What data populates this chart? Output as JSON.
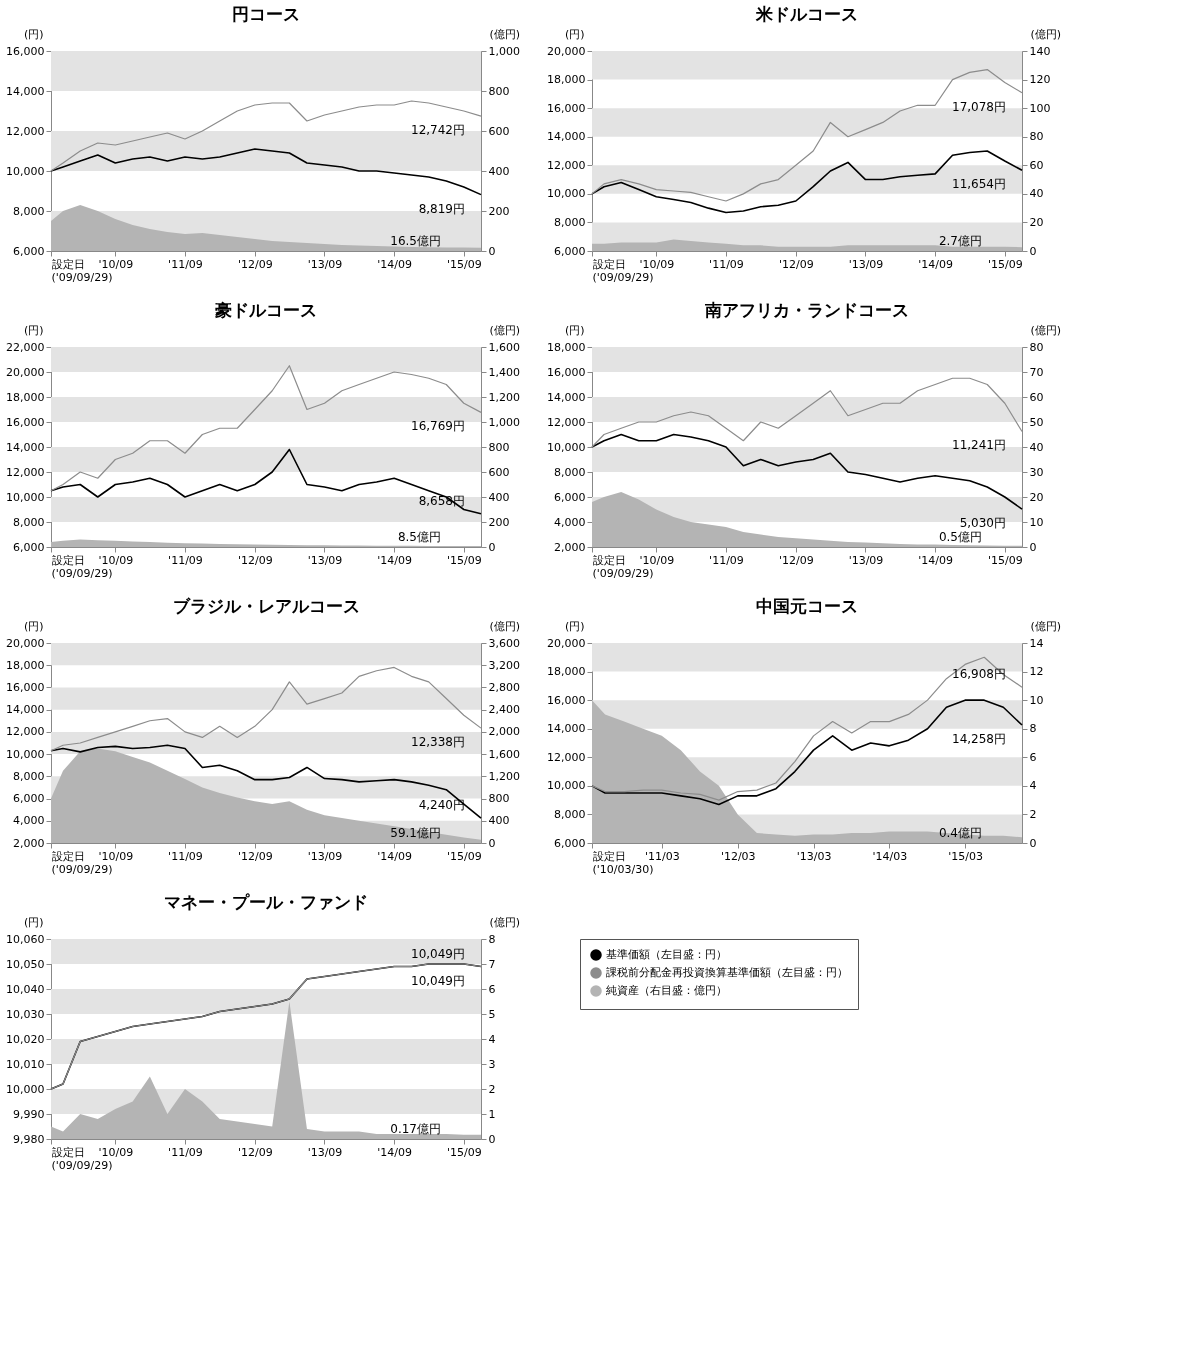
{
  "chart_data": [
    {
      "type": "line",
      "title": "円コース",
      "ylabel": "(円)",
      "y2label": "(億円)",
      "x": [
        "2009-09-29",
        "2009-12",
        "2010-03",
        "2010-06",
        "2010-09",
        "2010-12",
        "2011-03",
        "2011-06",
        "2011-09",
        "2011-12",
        "2012-03",
        "2012-06",
        "2012-09",
        "2012-12",
        "2013-03",
        "2013-06",
        "2013-09",
        "2013-12",
        "2014-03",
        "2014-06",
        "2014-09",
        "2014-12",
        "2015-03",
        "2015-06",
        "2015-09",
        "2015-11-30"
      ],
      "xlim": [
        "2009-09-29",
        "2015-11-30"
      ],
      "xticks": [
        {
          "value": "2009-09-29",
          "label": "設定日\n('09/09/29)"
        },
        {
          "value": "2010-09",
          "label": "'10/09"
        },
        {
          "value": "2011-09",
          "label": "'11/09"
        },
        {
          "value": "2012-09",
          "label": "'12/09"
        },
        {
          "value": "2013-09",
          "label": "'13/09"
        },
        {
          "value": "2014-09",
          "label": "'14/09"
        },
        {
          "value": "2015-09",
          "label": "'15/09"
        }
      ],
      "ylim": [
        6000,
        16000
      ],
      "yticks": [
        {
          "value": 6000,
          "label": "6,000"
        },
        {
          "value": 8000,
          "label": "8,000"
        },
        {
          "value": 10000,
          "label": "10,000"
        },
        {
          "value": 12000,
          "label": "12,000"
        },
        {
          "value": 14000,
          "label": "14,000"
        },
        {
          "value": 16000,
          "label": "16,000"
        }
      ],
      "y2lim": [
        0,
        1000
      ],
      "y2ticks": [
        0,
        200,
        400,
        600,
        800,
        {
          "value": 1000,
          "label": "1,000"
        }
      ],
      "bands": [
        {
          "axis": "y",
          "from": 14000,
          "to": 16000,
          "color": "#e3e3e3"
        },
        {
          "axis": "y",
          "from": 10000,
          "to": 12000,
          "color": "#e3e3e3"
        },
        {
          "axis": "y",
          "from": 6000,
          "to": 8000,
          "color": "#e3e3e3"
        }
      ],
      "series": [
        {
          "color": "#000000",
          "values": [
            10000,
            10200,
            10500,
            10800,
            10400,
            10600,
            10700,
            10500,
            10700,
            10600,
            10700,
            10900,
            11100,
            11000,
            10900,
            10400,
            10300,
            10200,
            10000,
            10000,
            9900,
            9800,
            9700,
            9500,
            9200,
            8819
          ]
        },
        {
          "color": "#8c8c8c",
          "values": [
            10000,
            10400,
            11000,
            11400,
            11300,
            11500,
            11700,
            11900,
            11600,
            12000,
            12500,
            13000,
            13300,
            13400,
            13400,
            12500,
            12800,
            13000,
            13200,
            13300,
            13300,
            13500,
            13400,
            13200,
            13000,
            12742
          ]
        },
        {
          "type": "area",
          "axis": "y2",
          "color": "#b4b4b4",
          "values": [
            150,
            200,
            230,
            200,
            160,
            130,
            110,
            95,
            85,
            90,
            80,
            70,
            60,
            50,
            45,
            40,
            35,
            30,
            28,
            25,
            22,
            20,
            19,
            18,
            17,
            16.5
          ]
        }
      ],
      "annotations": [
        {
          "text": "12,742円",
          "x": "2015-11-30",
          "y": 12742
        },
        {
          "text": "8,819円",
          "x": "2015-11-30",
          "y": 8819
        },
        "16.5億円"
      ]
    },
    {
      "type": "line",
      "title": "米ドルコース",
      "ylabel": "(円)",
      "y2label": "(億円)",
      "x": [
        "2009-09-29",
        "2009-12",
        "2010-03",
        "2010-06",
        "2010-09",
        "2010-12",
        "2011-03",
        "2011-06",
        "2011-09",
        "2011-12",
        "2012-03",
        "2012-06",
        "2012-09",
        "2012-12",
        "2013-03",
        "2013-06",
        "2013-09",
        "2013-12",
        "2014-03",
        "2014-06",
        "2014-09",
        "2014-12",
        "2015-03",
        "2015-06",
        "2015-09",
        "2015-11-30"
      ],
      "xlim": [
        "2009-09-29",
        "2015-11-30"
      ],
      "xticks": [
        {
          "value": "2009-09-29",
          "label": "設定日\n('09/09/29)"
        },
        {
          "value": "2010-09",
          "label": "'10/09"
        },
        {
          "value": "2011-09",
          "label": "'11/09"
        },
        {
          "value": "2012-09",
          "label": "'12/09"
        },
        {
          "value": "2013-09",
          "label": "'13/09"
        },
        {
          "value": "2014-09",
          "label": "'14/09"
        },
        {
          "value": "2015-09",
          "label": "'15/09"
        }
      ],
      "ylim": [
        6000,
        20000
      ],
      "yticks": [
        {
          "value": 6000,
          "label": "6,000"
        },
        {
          "value": 8000,
          "label": "8,000"
        },
        {
          "value": 10000,
          "label": "10,000"
        },
        {
          "value": 12000,
          "label": "12,000"
        },
        {
          "value": 14000,
          "label": "14,000"
        },
        {
          "value": 16000,
          "label": "16,000"
        },
        {
          "value": 18000,
          "label": "18,000"
        },
        {
          "value": 20000,
          "label": "20,000"
        }
      ],
      "y2lim": [
        0,
        140
      ],
      "y2ticks": [
        0,
        20,
        40,
        60,
        80,
        100,
        120,
        140
      ],
      "bands": [
        {
          "axis": "y",
          "from": 18000,
          "to": 20000,
          "color": "#e3e3e3"
        },
        {
          "axis": "y",
          "from": 14000,
          "to": 16000,
          "color": "#e3e3e3"
        },
        {
          "axis": "y",
          "from": 10000,
          "to": 12000,
          "color": "#e3e3e3"
        },
        {
          "axis": "y",
          "from": 6000,
          "to": 8000,
          "color": "#e3e3e3"
        }
      ],
      "series": [
        {
          "color": "#000000",
          "values": [
            10000,
            10500,
            10800,
            10300,
            9800,
            9600,
            9400,
            9000,
            8700,
            8800,
            9100,
            9200,
            9500,
            10500,
            11600,
            12200,
            11000,
            11000,
            11200,
            11300,
            11400,
            12700,
            12900,
            13000,
            12300,
            11654
          ]
        },
        {
          "color": "#8c8c8c",
          "values": [
            10000,
            10700,
            11000,
            10700,
            10300,
            10200,
            10100,
            9800,
            9500,
            10000,
            10700,
            11000,
            12000,
            13000,
            15000,
            14000,
            14500,
            15000,
            15800,
            16200,
            16200,
            18000,
            18500,
            18700,
            17800,
            17078
          ]
        },
        {
          "type": "area",
          "axis": "y2",
          "color": "#b4b4b4",
          "values": [
            5,
            5,
            6,
            6,
            6,
            8,
            7,
            6,
            5,
            4,
            4,
            3,
            3,
            3,
            3,
            4,
            4,
            4,
            4,
            4,
            4,
            3,
            3,
            3,
            3,
            2.7
          ]
        }
      ],
      "annotations": [
        {
          "text": "17,078円",
          "x": "2015-11-30",
          "y": 17078
        },
        {
          "text": "11,654円",
          "x": "2015-11-30",
          "y": 11654
        },
        "2.7億円"
      ]
    },
    {
      "type": "line",
      "title": "豪ドルコース",
      "ylabel": "(円)",
      "y2label": "(億円)",
      "x": [
        "2009-09-29",
        "2009-12",
        "2010-03",
        "2010-06",
        "2010-09",
        "2010-12",
        "2011-03",
        "2011-06",
        "2011-09",
        "2011-12",
        "2012-03",
        "2012-06",
        "2012-09",
        "2012-12",
        "2013-03",
        "2013-06",
        "2013-09",
        "2013-12",
        "2014-03",
        "2014-06",
        "2014-09",
        "2014-12",
        "2015-03",
        "2015-06",
        "2015-09",
        "2015-11-30"
      ],
      "xlim": [
        "2009-09-29",
        "2015-11-30"
      ],
      "xticks": [
        {
          "value": "2009-09-29",
          "label": "設定日\n('09/09/29)"
        },
        {
          "value": "2010-09",
          "label": "'10/09"
        },
        {
          "value": "2011-09",
          "label": "'11/09"
        },
        {
          "value": "2012-09",
          "label": "'12/09"
        },
        {
          "value": "2013-09",
          "label": "'13/09"
        },
        {
          "value": "2014-09",
          "label": "'14/09"
        },
        {
          "value": "2015-09",
          "label": "'15/09"
        }
      ],
      "ylim": [
        6000,
        22000
      ],
      "yticks": [
        {
          "value": 6000,
          "label": "6,000"
        },
        {
          "value": 8000,
          "label": "8,000"
        },
        {
          "value": 10000,
          "label": "10,000"
        },
        {
          "value": 12000,
          "label": "12,000"
        },
        {
          "value": 14000,
          "label": "14,000"
        },
        {
          "value": 16000,
          "label": "16,000"
        },
        {
          "value": 18000,
          "label": "18,000"
        },
        {
          "value": 20000,
          "label": "20,000"
        },
        {
          "value": 22000,
          "label": "22,000"
        }
      ],
      "y2lim": [
        0,
        1600
      ],
      "y2ticks": [
        0,
        200,
        400,
        600,
        800,
        {
          "value": 1000,
          "label": "1,000"
        },
        {
          "value": 1200,
          "label": "1,200"
        },
        {
          "value": 1400,
          "label": "1,400"
        },
        {
          "value": 1600,
          "label": "1,600"
        }
      ],
      "bands": [
        {
          "axis": "y",
          "from": 20000,
          "to": 22000,
          "color": "#e3e3e3"
        },
        {
          "axis": "y",
          "from": 16000,
          "to": 18000,
          "color": "#e3e3e3"
        },
        {
          "axis": "y",
          "from": 12000,
          "to": 14000,
          "color": "#e3e3e3"
        },
        {
          "axis": "y",
          "from": 8000,
          "to": 10000,
          "color": "#e3e3e3"
        }
      ],
      "series": [
        {
          "color": "#000000",
          "values": [
            10500,
            10800,
            11000,
            10000,
            11000,
            11200,
            11500,
            11000,
            10000,
            10500,
            11000,
            10500,
            11000,
            12000,
            13800,
            11000,
            10800,
            10500,
            11000,
            11200,
            11500,
            11000,
            10500,
            10000,
            9000,
            8658
          ]
        },
        {
          "color": "#8c8c8c",
          "values": [
            10500,
            11000,
            12000,
            11500,
            13000,
            13500,
            14500,
            14500,
            13500,
            15000,
            15500,
            15500,
            17000,
            18500,
            20500,
            17000,
            17500,
            18500,
            19000,
            19500,
            20000,
            19800,
            19500,
            19000,
            17500,
            16769
          ]
        },
        {
          "type": "area",
          "axis": "y2",
          "color": "#b4b4b4",
          "values": [
            40,
            50,
            60,
            55,
            50,
            45,
            40,
            35,
            30,
            28,
            25,
            22,
            20,
            18,
            17,
            15,
            14,
            13,
            12,
            11,
            10,
            10,
            9,
            9,
            8.5,
            8.5
          ]
        }
      ],
      "annotations": [
        {
          "text": "16,769円",
          "x": "2015-11-30",
          "y": 16769
        },
        {
          "text": "8,658円",
          "x": "2015-11-30",
          "y": 8658
        },
        "8.5億円"
      ]
    },
    {
      "type": "line",
      "title": "南アフリカ・ランドコース",
      "ylabel": "(円)",
      "y2label": "(億円)",
      "x": [
        "2009-09-29",
        "2009-12",
        "2010-03",
        "2010-06",
        "2010-09",
        "2010-12",
        "2011-03",
        "2011-06",
        "2011-09",
        "2011-12",
        "2012-03",
        "2012-06",
        "2012-09",
        "2012-12",
        "2013-03",
        "2013-06",
        "2013-09",
        "2013-12",
        "2014-03",
        "2014-06",
        "2014-09",
        "2014-12",
        "2015-03",
        "2015-06",
        "2015-09",
        "2015-11-30"
      ],
      "xlim": [
        "2009-09-29",
        "2015-11-30"
      ],
      "xticks": [
        {
          "value": "2009-09-29",
          "label": "設定日\n('09/09/29)"
        },
        {
          "value": "2010-09",
          "label": "'10/09"
        },
        {
          "value": "2011-09",
          "label": "'11/09"
        },
        {
          "value": "2012-09",
          "label": "'12/09"
        },
        {
          "value": "2013-09",
          "label": "'13/09"
        },
        {
          "value": "2014-09",
          "label": "'14/09"
        },
        {
          "value": "2015-09",
          "label": "'15/09"
        }
      ],
      "ylim": [
        2000,
        18000
      ],
      "yticks": [
        {
          "value": 2000,
          "label": "2,000"
        },
        {
          "value": 4000,
          "label": "4,000"
        },
        {
          "value": 6000,
          "label": "6,000"
        },
        {
          "value": 8000,
          "label": "8,000"
        },
        {
          "value": 10000,
          "label": "10,000"
        },
        {
          "value": 12000,
          "label": "12,000"
        },
        {
          "value": 14000,
          "label": "14,000"
        },
        {
          "value": 16000,
          "label": "16,000"
        },
        {
          "value": 18000,
          "label": "18,000"
        }
      ],
      "y2lim": [
        0,
        80
      ],
      "y2ticks": [
        0,
        10,
        20,
        30,
        40,
        50,
        60,
        70,
        80
      ],
      "bands": [
        {
          "axis": "y",
          "from": 16000,
          "to": 18000,
          "color": "#e3e3e3"
        },
        {
          "axis": "y",
          "from": 12000,
          "to": 14000,
          "color": "#e3e3e3"
        },
        {
          "axis": "y",
          "from": 8000,
          "to": 10000,
          "color": "#e3e3e3"
        },
        {
          "axis": "y",
          "from": 4000,
          "to": 6000,
          "color": "#e3e3e3"
        }
      ],
      "series": [
        {
          "color": "#000000",
          "values": [
            10000,
            10500,
            11000,
            10500,
            10500,
            11000,
            10800,
            10500,
            10000,
            8500,
            9000,
            8500,
            8800,
            9000,
            9500,
            8000,
            7800,
            7500,
            7200,
            7500,
            7700,
            7500,
            7300,
            6800,
            6000,
            5030
          ]
        },
        {
          "color": "#8c8c8c",
          "values": [
            10000,
            11000,
            11500,
            12000,
            12000,
            12500,
            12800,
            12500,
            11500,
            10500,
            12000,
            11500,
            12500,
            13500,
            14500,
            12500,
            13000,
            13500,
            13500,
            14500,
            15000,
            15500,
            15500,
            15000,
            13500,
            11241
          ]
        },
        {
          "type": "area",
          "axis": "y2",
          "color": "#b4b4b4",
          "values": [
            18,
            20,
            22,
            19,
            15,
            12,
            10,
            9,
            8,
            6,
            5,
            4,
            3.5,
            3,
            2.5,
            2,
            1.8,
            1.5,
            1.2,
            1,
            1,
            0.8,
            0.7,
            0.6,
            0.5,
            0.5
          ]
        }
      ],
      "annotations": [
        {
          "text": "11,241円",
          "x": "2015-11-30",
          "y": 11241
        },
        {
          "text": "5,030円",
          "x": "2015-11-30",
          "y": 5030
        },
        "0.5億円"
      ]
    },
    {
      "type": "line",
      "title": "ブラジル・レアルコース",
      "ylabel": "(円)",
      "y2label": "(億円)",
      "x": [
        "2009-09-29",
        "2009-12",
        "2010-03",
        "2010-06",
        "2010-09",
        "2010-12",
        "2011-03",
        "2011-06",
        "2011-09",
        "2011-12",
        "2012-03",
        "2012-06",
        "2012-09",
        "2012-12",
        "2013-03",
        "2013-06",
        "2013-09",
        "2013-12",
        "2014-03",
        "2014-06",
        "2014-09",
        "2014-12",
        "2015-03",
        "2015-06",
        "2015-09",
        "2015-11-30"
      ],
      "xlim": [
        "2009-09-29",
        "2015-11-30"
      ],
      "xticks": [
        {
          "value": "2009-09-29",
          "label": "設定日\n('09/09/29)"
        },
        {
          "value": "2010-09",
          "label": "'10/09"
        },
        {
          "value": "2011-09",
          "label": "'11/09"
        },
        {
          "value": "2012-09",
          "label": "'12/09"
        },
        {
          "value": "2013-09",
          "label": "'13/09"
        },
        {
          "value": "2014-09",
          "label": "'14/09"
        },
        {
          "value": "2015-09",
          "label": "'15/09"
        }
      ],
      "ylim": [
        2000,
        20000
      ],
      "yticks": [
        {
          "value": 2000,
          "label": "2,000"
        },
        {
          "value": 4000,
          "label": "4,000"
        },
        {
          "value": 6000,
          "label": "6,000"
        },
        {
          "value": 8000,
          "label": "8,000"
        },
        {
          "value": 10000,
          "label": "10,000"
        },
        {
          "value": 12000,
          "label": "12,000"
        },
        {
          "value": 14000,
          "label": "14,000"
        },
        {
          "value": 16000,
          "label": "16,000"
        },
        {
          "value": 18000,
          "label": "18,000"
        },
        {
          "value": 20000,
          "label": "20,000"
        }
      ],
      "y2lim": [
        0,
        3600
      ],
      "y2ticks": [
        0,
        400,
        800,
        {
          "value": 1200,
          "label": "1,200"
        },
        {
          "value": 1600,
          "label": "1,600"
        },
        {
          "value": 2000,
          "label": "2,000"
        },
        {
          "value": 2400,
          "label": "2,400"
        },
        {
          "value": 2800,
          "label": "2,800"
        },
        {
          "value": 3200,
          "label": "3,200"
        },
        {
          "value": 3600,
          "label": "3,600"
        }
      ],
      "bands": [
        {
          "axis": "y",
          "from": 18000,
          "to": 20000,
          "color": "#e3e3e3"
        },
        {
          "axis": "y",
          "from": 14000,
          "to": 16000,
          "color": "#e3e3e3"
        },
        {
          "axis": "y",
          "from": 10000,
          "to": 12000,
          "color": "#e3e3e3"
        },
        {
          "axis": "y",
          "from": 6000,
          "to": 8000,
          "color": "#e3e3e3"
        },
        {
          "axis": "y",
          "from": 2000,
          "to": 4000,
          "color": "#e3e3e3"
        }
      ],
      "series": [
        {
          "color": "#000000",
          "values": [
            10300,
            10500,
            10200,
            10600,
            10700,
            10500,
            10600,
            10800,
            10500,
            8800,
            9000,
            8500,
            7700,
            7700,
            7900,
            8800,
            7800,
            7700,
            7500,
            7600,
            7700,
            7500,
            7200,
            6800,
            5500,
            4240
          ]
        },
        {
          "color": "#8c8c8c",
          "values": [
            10300,
            10800,
            11000,
            11500,
            12000,
            12500,
            13000,
            13200,
            12000,
            11500,
            12500,
            11500,
            12500,
            14000,
            16500,
            14500,
            15000,
            15500,
            17000,
            17500,
            17800,
            17000,
            16500,
            15000,
            13500,
            12338
          ]
        },
        {
          "type": "area",
          "axis": "y2",
          "color": "#b4b4b4",
          "values": [
            800,
            1300,
            1650,
            1700,
            1650,
            1550,
            1450,
            1300,
            1150,
            1000,
            900,
            820,
            750,
            700,
            750,
            600,
            500,
            450,
            400,
            350,
            300,
            250,
            200,
            150,
            100,
            59.1
          ]
        }
      ],
      "annotations": [
        {
          "text": "12,338円",
          "x": "2015-11-30",
          "y": 12338
        },
        {
          "text": "4,240円",
          "x": "2015-11-30",
          "y": 4240
        },
        "59.1億円"
      ]
    },
    {
      "type": "line",
      "title": "中国元コース",
      "ylabel": "(円)",
      "y2label": "(億円)",
      "x": [
        "2010-03-30",
        "2010-06",
        "2010-09",
        "2010-12",
        "2011-03",
        "2011-06",
        "2011-09",
        "2011-12",
        "2012-03",
        "2012-06",
        "2012-09",
        "2012-12",
        "2013-03",
        "2013-06",
        "2013-09",
        "2013-12",
        "2014-03",
        "2014-06",
        "2014-09",
        "2014-12",
        "2015-03",
        "2015-06",
        "2015-09",
        "2015-11-30"
      ],
      "xlim": [
        "2010-03-30",
        "2015-11-30"
      ],
      "xticks": [
        {
          "value": "2010-03-30",
          "label": "設定日\n('10/03/30)"
        },
        {
          "value": "2011-03",
          "label": "'11/03"
        },
        {
          "value": "2012-03",
          "label": "'12/03"
        },
        {
          "value": "2013-03",
          "label": "'13/03"
        },
        {
          "value": "2014-03",
          "label": "'14/03"
        },
        {
          "value": "2015-03",
          "label": "'15/03"
        }
      ],
      "ylim": [
        6000,
        20000
      ],
      "yticks": [
        {
          "value": 6000,
          "label": "6,000"
        },
        {
          "value": 8000,
          "label": "8,000"
        },
        {
          "value": 10000,
          "label": "10,000"
        },
        {
          "value": 12000,
          "label": "12,000"
        },
        {
          "value": 14000,
          "label": "14,000"
        },
        {
          "value": 16000,
          "label": "16,000"
        },
        {
          "value": 18000,
          "label": "18,000"
        },
        {
          "value": 20000,
          "label": "20,000"
        }
      ],
      "y2lim": [
        0,
        14
      ],
      "y2ticks": [
        0,
        2,
        4,
        6,
        8,
        10,
        12,
        14
      ],
      "bands": [
        {
          "axis": "y",
          "from": 18000,
          "to": 20000,
          "color": "#e3e3e3"
        },
        {
          "axis": "y",
          "from": 14000,
          "to": 16000,
          "color": "#e3e3e3"
        },
        {
          "axis": "y",
          "from": 10000,
          "to": 12000,
          "color": "#e3e3e3"
        },
        {
          "axis": "y",
          "from": 6000,
          "to": 8000,
          "color": "#e3e3e3"
        }
      ],
      "series": [
        {
          "color": "#000000",
          "values": [
            10000,
            9500,
            9500,
            9500,
            9500,
            9300,
            9100,
            8700,
            9300,
            9300,
            9800,
            11000,
            12500,
            13500,
            12500,
            13000,
            12800,
            13200,
            14000,
            15500,
            16000,
            16000,
            15500,
            14258
          ]
        },
        {
          "color": "#8c8c8c",
          "values": [
            10000,
            9600,
            9600,
            9700,
            9700,
            9500,
            9400,
            9000,
            9600,
            9700,
            10200,
            11700,
            13500,
            14500,
            13700,
            14500,
            14500,
            15000,
            16000,
            17500,
            18500,
            19000,
            17800,
            16908
          ]
        },
        {
          "type": "area",
          "axis": "y2",
          "color": "#b4b4b4",
          "values": [
            10,
            9,
            8.5,
            8,
            7.5,
            6.5,
            5,
            4,
            2,
            0.7,
            0.6,
            0.5,
            0.6,
            0.6,
            0.7,
            0.7,
            0.8,
            0.8,
            0.8,
            0.7,
            0.6,
            0.5,
            0.5,
            0.4
          ]
        }
      ],
      "annotations": [
        {
          "text": "16,908円",
          "x": "2015-11-30",
          "y": 16908
        },
        {
          "text": "14,258円",
          "x": "2015-11-30",
          "y": 14258
        },
        "0.4億円"
      ]
    },
    {
      "type": "line",
      "title": "マネー・プール・ファンド",
      "ylabel": "(円)",
      "y2label": "(億円)",
      "legend": "right",
      "x": [
        "2009-09-29",
        "2009-12",
        "2010-03",
        "2010-06",
        "2010-09",
        "2010-12",
        "2011-03",
        "2011-06",
        "2011-09",
        "2011-12",
        "2012-03",
        "2012-06",
        "2012-09",
        "2012-12",
        "2013-03",
        "2013-06",
        "2013-09",
        "2013-12",
        "2014-03",
        "2014-06",
        "2014-09",
        "2014-12",
        "2015-03",
        "2015-06",
        "2015-09",
        "2015-11-30"
      ],
      "xlim": [
        "2009-09-29",
        "2015-11-30"
      ],
      "xticks": [
        {
          "value": "2009-09-29",
          "label": "設定日\n('09/09/29)"
        },
        {
          "value": "2010-09",
          "label": "'10/09"
        },
        {
          "value": "2011-09",
          "label": "'11/09"
        },
        {
          "value": "2012-09",
          "label": "'12/09"
        },
        {
          "value": "2013-09",
          "label": "'13/09"
        },
        {
          "value": "2014-09",
          "label": "'14/09"
        },
        {
          "value": "2015-09",
          "label": "'15/09"
        }
      ],
      "ylim": [
        9980,
        10060
      ],
      "yticks": [
        {
          "value": 9980,
          "label": "9,980"
        },
        {
          "value": 9990,
          "label": "9,990"
        },
        {
          "value": 10000,
          "label": "10,000"
        },
        {
          "value": 10010,
          "label": "10,010"
        },
        {
          "value": 10020,
          "label": "10,020"
        },
        {
          "value": 10030,
          "label": "10,030"
        },
        {
          "value": 10040,
          "label": "10,040"
        },
        {
          "value": 10050,
          "label": "10,050"
        },
        {
          "value": 10060,
          "label": "10,060"
        }
      ],
      "y2lim": [
        0,
        8
      ],
      "y2ticks": [
        0,
        1,
        2,
        3,
        4,
        5,
        6,
        7,
        8
      ],
      "bands": [
        {
          "axis": "y",
          "from": 10050,
          "to": 10060,
          "color": "#e3e3e3"
        },
        {
          "axis": "y",
          "from": 10030,
          "to": 10040,
          "color": "#e3e3e3"
        },
        {
          "axis": "y",
          "from": 10010,
          "to": 10020,
          "color": "#e3e3e3"
        },
        {
          "axis": "y",
          "from": 9990,
          "to": 10000,
          "color": "#e3e3e3"
        }
      ],
      "series": [
        {
          "name": "基準価額（左目盛：円）",
          "color": "#000000",
          "values": [
            10000,
            10002,
            10019,
            10021,
            10023,
            10025,
            10026,
            10027,
            10028,
            10029,
            10031,
            10032,
            10033,
            10034,
            10036,
            10044,
            10045,
            10046,
            10047,
            10048,
            10049,
            10049,
            10050,
            10050,
            10050,
            10049
          ]
        },
        {
          "name": "課税前分配金再投資換算基準価額（左目盛：円）",
          "color": "#8c8c8c",
          "values": [
            10000,
            10002,
            10019,
            10021,
            10023,
            10025,
            10026,
            10027,
            10028,
            10029,
            10031,
            10032,
            10033,
            10034,
            10036,
            10044,
            10045,
            10046,
            10047,
            10048,
            10049,
            10049,
            10050,
            10050,
            10050,
            10049
          ]
        },
        {
          "name": "純資産（右目盛：億円）",
          "type": "area",
          "axis": "y2",
          "color": "#b4b4b4",
          "values": [
            0.5,
            0.3,
            1,
            0.8,
            1.2,
            1.5,
            2.5,
            1,
            2,
            1.5,
            0.8,
            0.7,
            0.6,
            0.5,
            5.5,
            0.4,
            0.3,
            0.3,
            0.3,
            0.2,
            0.2,
            0.2,
            0.2,
            0.2,
            0.17,
            0.17
          ]
        }
      ],
      "annotations": [
        {
          "text": "10,049円",
          "x": "2015-11-30",
          "y": 10049
        },
        {
          "text": "10,049円",
          "x": "2015-11-30",
          "y": 10049
        },
        "0.17億円"
      ]
    }
  ]
}
